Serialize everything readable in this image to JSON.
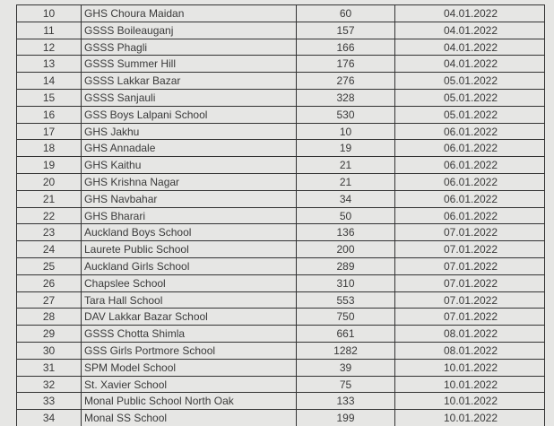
{
  "table": {
    "rows": [
      [
        10,
        "GHS Choura Maidan",
        60,
        "04.01.2022"
      ],
      [
        11,
        "GSSS Boileauganj",
        157,
        "04.01.2022"
      ],
      [
        12,
        "GSSS Phagli",
        166,
        "04.01.2022"
      ],
      [
        13,
        "GSSS Summer Hill",
        176,
        "04.01.2022"
      ],
      [
        14,
        "GSSS Lakkar Bazar",
        276,
        "05.01.2022"
      ],
      [
        15,
        "GSSS Sanjauli",
        328,
        "05.01.2022"
      ],
      [
        16,
        "GSS Boys Lalpani School",
        530,
        "05.01.2022"
      ],
      [
        17,
        "GHS Jakhu",
        10,
        "06.01.2022"
      ],
      [
        18,
        "GHS Annadale",
        19,
        "06.01.2022"
      ],
      [
        19,
        "GHS Kaithu",
        21,
        "06.01.2022"
      ],
      [
        20,
        "GHS Krishna Nagar",
        21,
        "06.01.2022"
      ],
      [
        21,
        "GHS Navbahar",
        34,
        "06.01.2022"
      ],
      [
        22,
        "GHS Bharari",
        50,
        "06.01.2022"
      ],
      [
        23,
        "Auckland Boys School",
        136,
        "07.01.2022"
      ],
      [
        24,
        "Laurete Public School",
        200,
        "07.01.2022"
      ],
      [
        25,
        "Auckland Girls School",
        289,
        "07.01.2022"
      ],
      [
        26,
        "Chapslee School",
        310,
        "07.01.2022"
      ],
      [
        27,
        "Tara Hall School",
        553,
        "07.01.2022"
      ],
      [
        28,
        "DAV Lakkar Bazar School",
        750,
        "07.01.2022"
      ],
      [
        29,
        "GSSS Chotta Shimla",
        661,
        "08.01.2022"
      ],
      [
        30,
        "GSS Girls Portmore School",
        1282,
        "08.01.2022"
      ],
      [
        31,
        "SPM Model School",
        39,
        "10.01.2022"
      ],
      [
        32,
        "St. Xavier School",
        75,
        "10.01.2022"
      ],
      [
        33,
        "Monal Public School North Oak",
        133,
        "10.01.2022"
      ],
      [
        34,
        "Monal SS School",
        199,
        "10.01.2022"
      ]
    ]
  }
}
